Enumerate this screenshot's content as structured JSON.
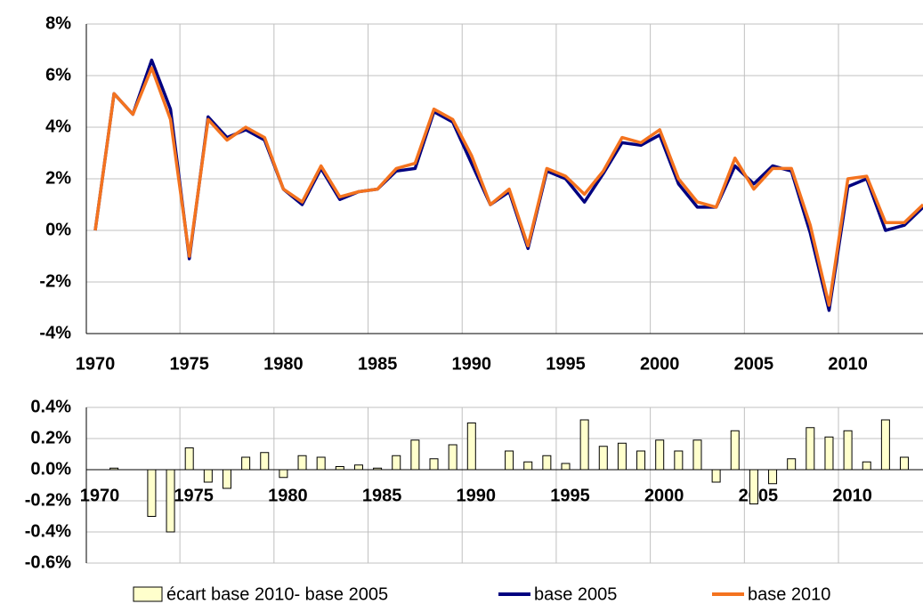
{
  "chart_data": [
    {
      "type": "line",
      "categories": [
        "1970",
        null,
        null,
        null,
        null,
        "1975",
        null,
        null,
        null,
        null,
        "1980",
        null,
        null,
        null,
        null,
        "1985",
        null,
        null,
        null,
        null,
        "1990",
        null,
        null,
        null,
        null,
        "1995",
        null,
        null,
        null,
        null,
        "2000",
        null,
        null,
        null,
        null,
        "2005",
        null,
        null,
        null,
        null,
        "2010",
        null,
        null,
        null,
        null
      ],
      "series": [
        {
          "name": "base 2005",
          "color": "#000080",
          "values": [
            0,
            5.3,
            4.5,
            6.6,
            4.7,
            -1.1,
            4.4,
            3.6,
            3.9,
            3.5,
            1.6,
            1.0,
            2.4,
            1.2,
            1.5,
            1.6,
            2.3,
            2.4,
            4.6,
            4.2,
            2.6,
            1.0,
            1.5,
            -0.7,
            2.3,
            2.0,
            1.1,
            2.2,
            3.4,
            3.3,
            3.7,
            1.8,
            0.9,
            0.9,
            2.5,
            1.8,
            2.5,
            2.3,
            -0.1,
            -3.1,
            1.7,
            2.0,
            0.0,
            0.2,
            0.9
          ]
        },
        {
          "name": "base 2010",
          "color": "#f4731f",
          "values": [
            0,
            5.3,
            4.5,
            6.3,
            4.3,
            -1.0,
            4.3,
            3.5,
            4.0,
            3.6,
            1.6,
            1.1,
            2.5,
            1.3,
            1.5,
            1.6,
            2.4,
            2.6,
            4.7,
            4.3,
            2.9,
            1.0,
            1.6,
            -0.6,
            2.4,
            2.1,
            1.4,
            2.3,
            3.6,
            3.4,
            3.9,
            2.0,
            1.1,
            0.9,
            2.8,
            1.6,
            2.4,
            2.4,
            0.2,
            -2.9,
            2.0,
            2.1,
            0.3,
            0.3,
            1.0
          ]
        }
      ],
      "ylim": [
        -4,
        8
      ],
      "yticks": [
        {
          "value": -4,
          "label": "-4%"
        },
        {
          "value": -2,
          "label": "-2%"
        },
        {
          "value": 0,
          "label": "0%"
        },
        {
          "value": 2,
          "label": "2%"
        },
        {
          "value": 4,
          "label": "4%"
        },
        {
          "value": 6,
          "label": "6%"
        },
        {
          "value": 8,
          "label": "8%"
        }
      ],
      "grid": true
    },
    {
      "type": "bar",
      "categories": [
        "1970",
        null,
        null,
        null,
        null,
        "1975",
        null,
        null,
        null,
        null,
        "1980",
        null,
        null,
        null,
        null,
        "1985",
        null,
        null,
        null,
        null,
        "1990",
        null,
        null,
        null,
        null,
        "1995",
        null,
        null,
        null,
        null,
        "2000",
        null,
        null,
        null,
        null,
        "2005",
        null,
        null,
        null,
        null,
        "2010",
        null,
        null,
        null,
        null
      ],
      "series": [
        {
          "name": "écart base 2010- base 2005",
          "color": "#ffffcc",
          "values": [
            0,
            0.01,
            0,
            -0.3,
            -0.4,
            0.14,
            -0.08,
            -0.12,
            0.08,
            0.11,
            -0.05,
            0.09,
            0.08,
            0.02,
            0.03,
            0.01,
            0.09,
            0.19,
            0.07,
            0.16,
            0.3,
            0,
            0.12,
            0.05,
            0.09,
            0.04,
            0.32,
            0.15,
            0.17,
            0.12,
            0.19,
            0.12,
            0.19,
            -0.08,
            0.25,
            -0.22,
            -0.09,
            0.07,
            0.27,
            0.21,
            0.25,
            0.05,
            0.32,
            0.08,
            null
          ]
        }
      ],
      "ylim": [
        -0.6,
        0.4
      ],
      "yticks": [
        {
          "value": -0.6,
          "label": "-0.6%"
        },
        {
          "value": -0.4,
          "label": "-0.4%"
        },
        {
          "value": -0.2,
          "label": "-0.2%"
        },
        {
          "value": 0,
          "label": "0.0%"
        },
        {
          "value": 0.2,
          "label": "0.2%"
        },
        {
          "value": 0.4,
          "label": "0.4%"
        }
      ],
      "grid": true
    }
  ]
}
